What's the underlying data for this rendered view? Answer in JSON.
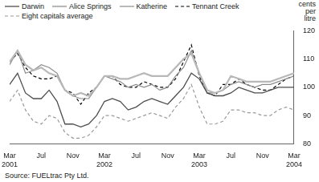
{
  "chart_data": {
    "type": "line",
    "y_label": "cents per litre",
    "source": "Source: FUELtrac Pty Ltd.",
    "categories": [
      "Mar 2001",
      null,
      null,
      null,
      "Jul",
      null,
      null,
      null,
      "Nov",
      null,
      null,
      null,
      "Mar 2002",
      null,
      null,
      null,
      "Jul",
      null,
      null,
      null,
      "Nov",
      null,
      null,
      null,
      "Mar 2003",
      null,
      null,
      null,
      "Jul",
      null,
      null,
      null,
      "Nov",
      null,
      null,
      null,
      "Mar 2004"
    ],
    "series": [
      {
        "name": "Darwin",
        "color": "#4d4d4d",
        "line_style": "solid",
        "values": [
          101,
          105,
          98,
          96,
          96,
          99,
          95,
          87,
          87,
          86,
          87,
          90,
          95,
          96,
          95,
          92,
          93,
          95,
          96,
          95,
          94,
          97,
          100,
          105,
          103,
          98,
          97,
          97,
          98,
          100,
          99,
          98,
          98,
          99,
          100,
          100,
          100
        ]
      },
      {
        "name": "Alice Springs",
        "color": "#b8b8b8",
        "line_style": "solid",
        "values": [
          109,
          113,
          108,
          106,
          107,
          105,
          104,
          99,
          97,
          98,
          97,
          100,
          104,
          104,
          103,
          103,
          104,
          105,
          104,
          104,
          104,
          107,
          110,
          112,
          105,
          99,
          98,
          99,
          104,
          103,
          102,
          102,
          102,
          102,
          103,
          104,
          105
        ]
      },
      {
        "name": "Katherine",
        "color": "#8c8c8c",
        "line_style": "solid",
        "values": [
          108,
          113,
          105,
          106,
          108,
          107,
          105,
          99,
          97,
          96,
          96,
          100,
          104,
          103,
          102,
          100,
          101,
          100,
          101,
          99,
          100,
          104,
          107,
          113,
          105,
          98,
          98,
          99,
          101,
          102,
          101,
          100,
          101,
          101,
          102,
          103,
          104
        ]
      },
      {
        "name": "Tennant Creek",
        "color": "#000000",
        "line_style": "dashed",
        "values": [
          109,
          112,
          107,
          104,
          103,
          103,
          104,
          99,
          98,
          94,
          98,
          100,
          104,
          104,
          101,
          100,
          100,
          102,
          101,
          100,
          100,
          103,
          109,
          115,
          104,
          98,
          97,
          101,
          101,
          103,
          101,
          100,
          99,
          99,
          101,
          103,
          104
        ]
      },
      {
        "name": "Eight capitals average",
        "color": "#9a9a9a",
        "line_style": "dashed",
        "values": [
          95,
          99,
          92,
          88,
          87,
          90,
          89,
          84,
          82,
          82,
          83,
          86,
          90,
          90,
          89,
          88,
          89,
          90,
          91,
          90,
          89,
          93,
          96,
          101,
          93,
          87,
          87,
          88,
          92,
          92,
          91,
          91,
          90,
          90,
          92,
          93,
          92
        ]
      }
    ],
    "ylim": [
      80,
      120
    ],
    "yticks": [
      80,
      90,
      100,
      110,
      120
    ],
    "grid": false,
    "legend": "top-left"
  }
}
